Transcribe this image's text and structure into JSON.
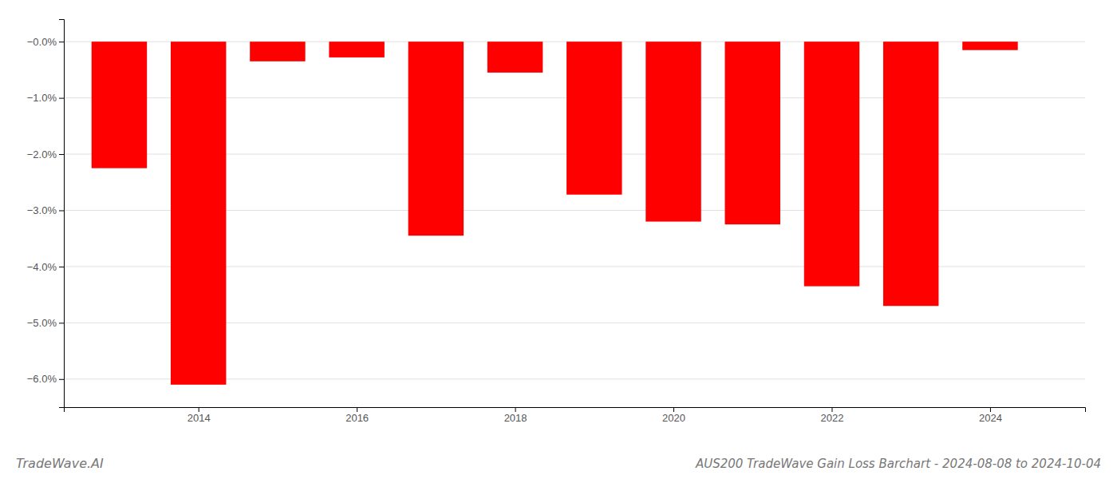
{
  "chart_data": {
    "type": "bar",
    "title": "AUS200 TradeWave Gain Loss Barchart - 2024-08-08 to 2024-10-04",
    "annotations": [
      "TradeWave.AI"
    ],
    "x": [
      2013,
      2014,
      2015,
      2016,
      2017,
      2018,
      2019,
      2020,
      2021,
      2022,
      2023,
      2024
    ],
    "values": [
      -2.25,
      -6.1,
      -0.35,
      -0.28,
      -3.45,
      -0.55,
      -2.72,
      -3.2,
      -3.25,
      -4.35,
      -4.7,
      -0.15
    ],
    "color": "#ff0000",
    "xlim": [
      2012.3,
      2025.2
    ],
    "xticks": [
      2014,
      2016,
      2018,
      2020,
      2022,
      2024
    ],
    "ylim": [
      -6.5,
      0.4
    ],
    "yticks": [
      {
        "value": 0.0,
        "label": "−0.0%"
      },
      {
        "value": -1.0,
        "label": "−1.0%"
      },
      {
        "value": -2.0,
        "label": "−2.0%"
      },
      {
        "value": -3.0,
        "label": "−3.0%"
      },
      {
        "value": -4.0,
        "label": "−4.0%"
      },
      {
        "value": -5.0,
        "label": "−5.0%"
      },
      {
        "value": -6.0,
        "label": "−6.0%"
      }
    ],
    "grid": true
  }
}
